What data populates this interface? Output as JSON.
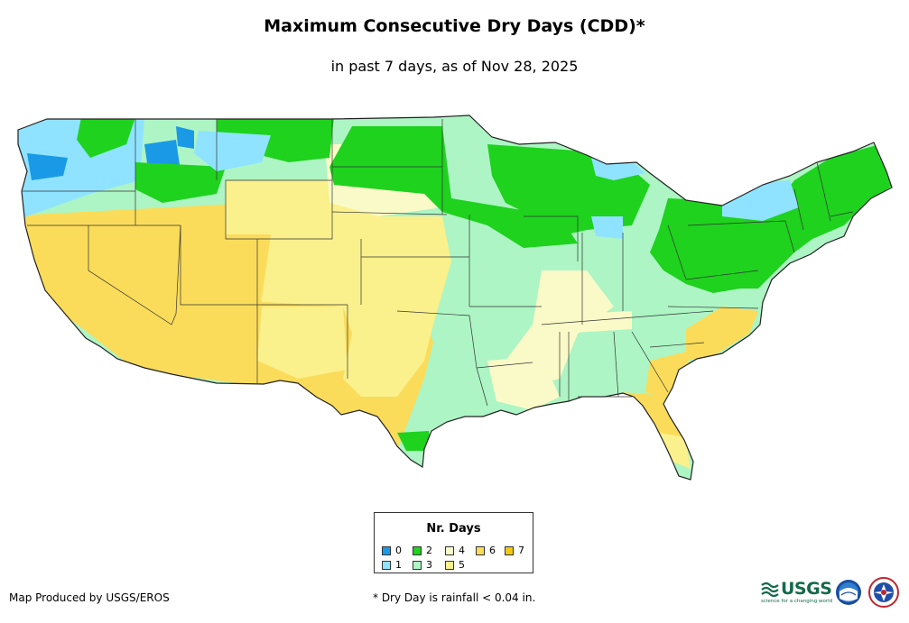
{
  "title": "Maximum Consecutive Dry Days (CDD)*",
  "subtitle": "in past 7 days, as of Nov 28, 2025",
  "legend": {
    "title": "Nr. Days",
    "items": [
      {
        "label": "0",
        "color": "#1a9ae6"
      },
      {
        "label": "1",
        "color": "#8fe3ff"
      },
      {
        "label": "2",
        "color": "#1ed21e"
      },
      {
        "label": "3",
        "color": "#adf5c4"
      },
      {
        "label": "4",
        "color": "#fafac8"
      },
      {
        "label": "5",
        "color": "#faf08c"
      },
      {
        "label": "6",
        "color": "#fadc5a"
      },
      {
        "label": "7",
        "color": "#f5c814"
      }
    ]
  },
  "credit": "Map Produced by USGS/EROS",
  "footnote": "* Dry Day is rainfall < 0.04 in.",
  "logos": {
    "usgs": "USGS",
    "usgs_tagline": "science for a changing world",
    "noaa": "noaa-logo",
    "nws": "nws-logo"
  },
  "colors": {
    "border": "#333333",
    "map_outline": "#222222"
  }
}
